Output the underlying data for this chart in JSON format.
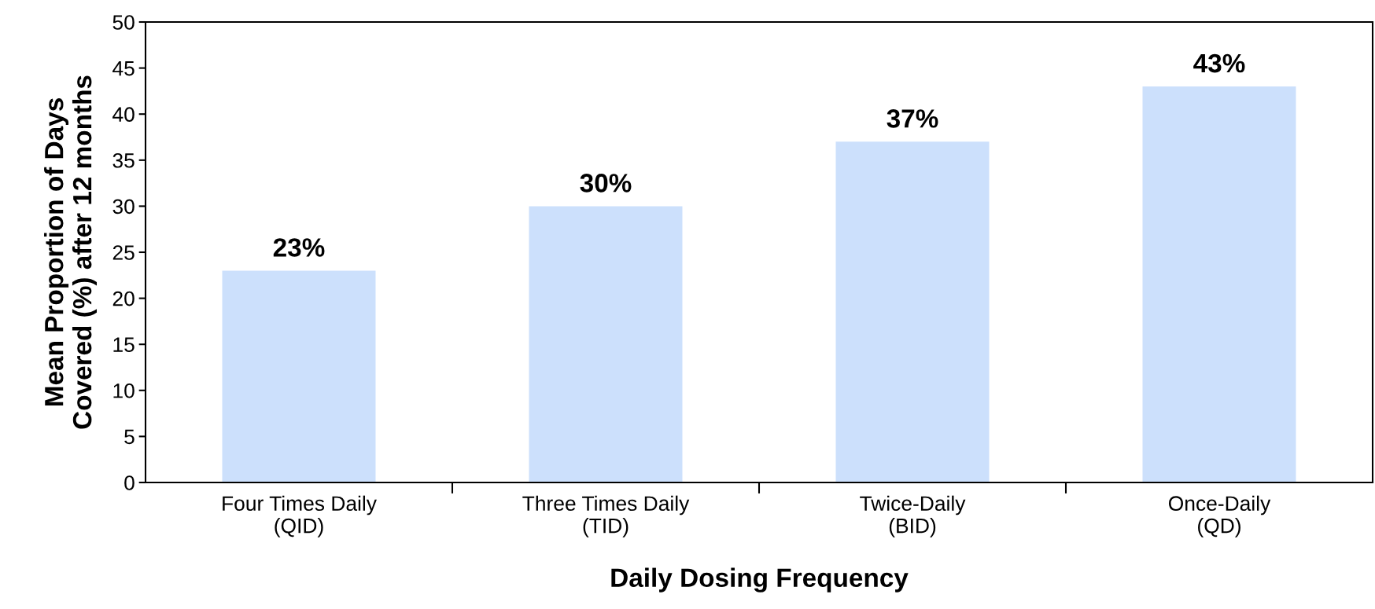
{
  "chart_data": {
    "type": "bar",
    "xlabel": "Daily Dosing Frequency",
    "ylabel": "Mean Proportion of Days\nCovered (%) after 12 months",
    "categories": [
      "Four Times Daily\n(QID)",
      "Three Times Daily\n(TID)",
      "Twice-Daily\n(BID)",
      "Once-Daily\n(QD)"
    ],
    "values": [
      23,
      30,
      37,
      43
    ],
    "value_labels": [
      "23%",
      "30%",
      "37%",
      "43%"
    ],
    "color": "#cce0fc",
    "ylim": [
      0,
      50
    ],
    "yticks": [
      0,
      5,
      10,
      15,
      20,
      25,
      30,
      35,
      40,
      45,
      50
    ],
    "grid": false
  }
}
